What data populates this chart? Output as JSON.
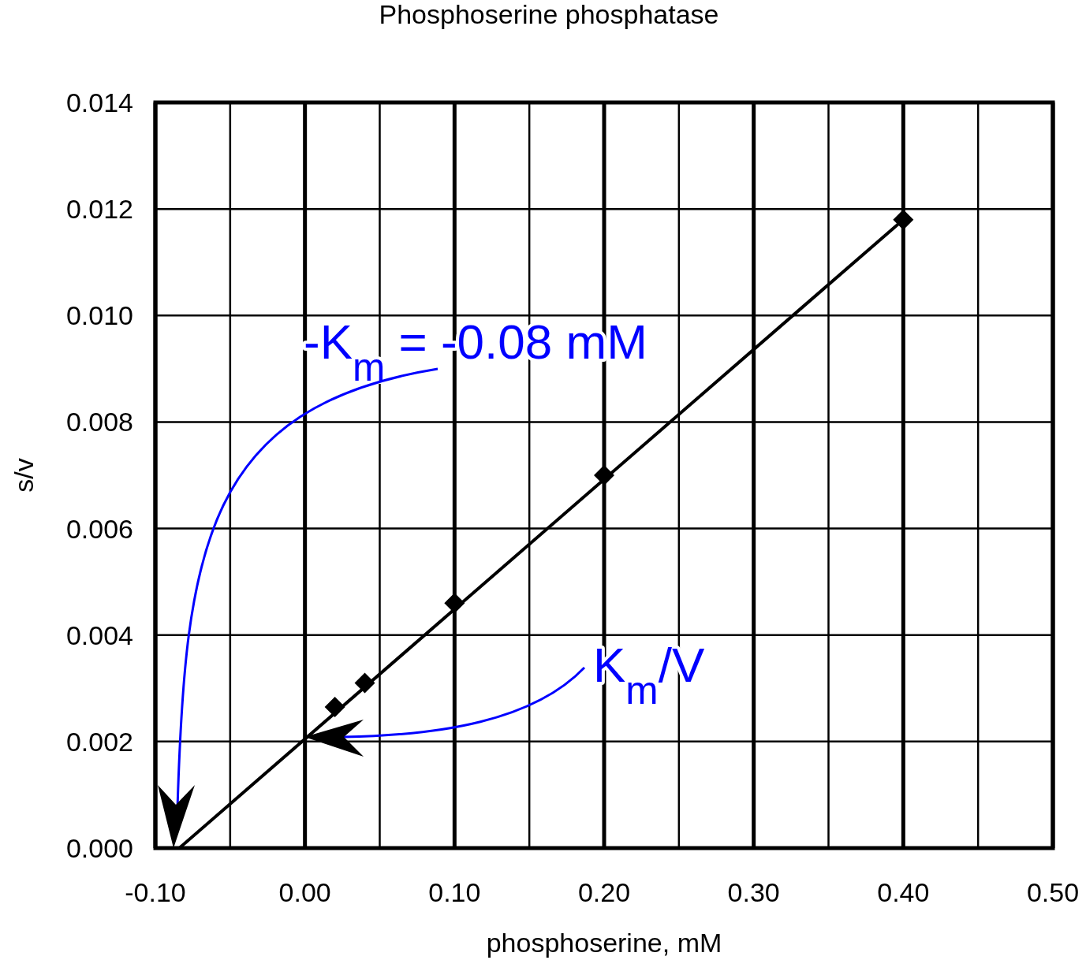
{
  "chart_data": {
    "type": "scatter",
    "title": "Phosphoserine phosphatase",
    "xlabel": "phosphoserine, mM",
    "ylabel": "s/v",
    "xlim": [
      -0.1,
      0.5
    ],
    "ylim": [
      0,
      0.014
    ],
    "xticks": [
      {
        "value": -0.1,
        "label": "-0.10"
      },
      {
        "value": -0.05,
        "label": null
      },
      {
        "value": 0,
        "label": "0.00"
      },
      {
        "value": 0.05,
        "label": null
      },
      {
        "value": 0.1,
        "label": "0.10"
      },
      {
        "value": 0.15,
        "label": null
      },
      {
        "value": 0.2,
        "label": "0.20"
      },
      {
        "value": 0.25,
        "label": null
      },
      {
        "value": 0.3,
        "label": "0.30"
      },
      {
        "value": 0.35,
        "label": null
      },
      {
        "value": 0.4,
        "label": "0.40"
      },
      {
        "value": 0.45,
        "label": null
      },
      {
        "value": 0.5,
        "label": "0.50"
      }
    ],
    "yticks": [
      {
        "value": 0,
        "label": "0.000"
      },
      {
        "value": 0.002,
        "label": "0.002"
      },
      {
        "value": 0.004,
        "label": "0.004"
      },
      {
        "value": 0.006,
        "label": "0.006"
      },
      {
        "value": 0.008,
        "label": "0.008"
      },
      {
        "value": 0.01,
        "label": "0.010"
      },
      {
        "value": 0.012,
        "label": "0.012"
      },
      {
        "value": 0.014,
        "label": "0.014"
      }
    ],
    "grid": true,
    "series": [
      {
        "color": "#000000",
        "marker": "diamond",
        "x": [
          0.02,
          0.04,
          0.1,
          0.2,
          0.4
        ],
        "values": [
          0.00265,
          0.0031,
          0.0046,
          0.007,
          0.0118
        ]
      },
      {
        "type": "line",
        "color": "#000000",
        "line_style": "solid",
        "x": [
          -0.084,
          0.4
        ],
        "values": [
          0,
          0.0118
        ]
      }
    ],
    "annotations": [
      "-K$_{m}$ = -0.08 mM",
      "K$_{m}$/V"
    ]
  }
}
